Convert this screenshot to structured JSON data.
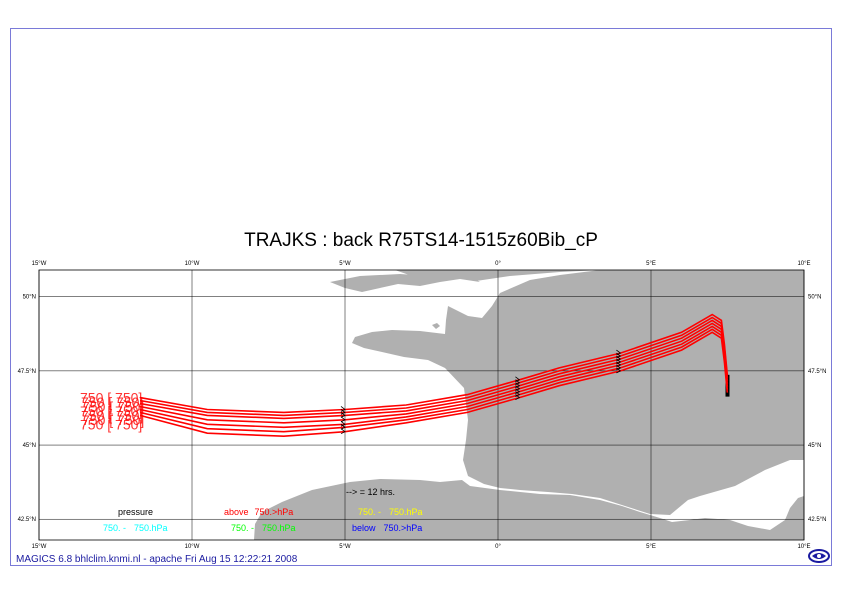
{
  "title": "TRAJKS : back R75TS14-1515z60Bib_cP",
  "footer": "MAGICS 6.8 bhlclim.knmi.nl - apache Fri Aug 15 12:22:21 2008",
  "axes": {
    "lon_labels": [
      "15°W",
      "10°W",
      "5°W",
      "0°",
      "5°E",
      "10°E"
    ],
    "lat_labels": [
      "50°N",
      "47.5°N",
      "45°N",
      "42.5°N"
    ],
    "lon_range": [
      -15,
      10
    ],
    "lat_range": [
      41.8,
      50.9
    ]
  },
  "legend": {
    "arrow_note": "--> = 12 hrs.",
    "pressure_label": "pressure",
    "entries": [
      {
        "prefix": "above",
        "text": "750.>hPa",
        "color": "#ff0000"
      },
      {
        "prefix": "750. -",
        "text": "750.hPa",
        "color": "#ffff00"
      },
      {
        "prefix": "750. -",
        "text": "750.hPa",
        "color": "#00ffff"
      },
      {
        "prefix": "750. -",
        "text": "750.hPa",
        "color": "#00ff00"
      },
      {
        "prefix": "below",
        "text": "750.>hPa",
        "color": "#0000ff"
      }
    ]
  },
  "trajectory_start_label": "750 [ 750]",
  "colors": {
    "land": "#b0b0b0",
    "sea": "#ffffff",
    "trajectory": "#ff0000",
    "grid": "#000000",
    "frame": "#7a7ad8",
    "footer": "#1a1aa0"
  },
  "trajectories": [
    {
      "points": [
        [
          -11.7,
          46.6
        ],
        [
          -9.5,
          46.2
        ],
        [
          -7,
          46.1
        ],
        [
          -5,
          46.2
        ],
        [
          -3,
          46.35
        ],
        [
          -1,
          46.7
        ],
        [
          0.7,
          47.2
        ],
        [
          2,
          47.6
        ],
        [
          4,
          48.1
        ],
        [
          6,
          48.8
        ],
        [
          7,
          49.4
        ],
        [
          7.3,
          49.2
        ],
        [
          7.4,
          48.4
        ],
        [
          7.5,
          47.3
        ]
      ]
    },
    {
      "points": [
        [
          -11.7,
          46.5
        ],
        [
          -9.5,
          46.1
        ],
        [
          -7,
          46.0
        ],
        [
          -5,
          46.1
        ],
        [
          -3,
          46.25
        ],
        [
          -1,
          46.6
        ],
        [
          0.7,
          47.1
        ],
        [
          2,
          47.5
        ],
        [
          4,
          48.0
        ],
        [
          6,
          48.7
        ],
        [
          7,
          49.3
        ],
        [
          7.3,
          49.1
        ],
        [
          7.4,
          48.3
        ],
        [
          7.5,
          47.2
        ]
      ]
    },
    {
      "points": [
        [
          -11.7,
          46.4
        ],
        [
          -9.5,
          46.0
        ],
        [
          -7,
          45.9
        ],
        [
          -5,
          46.0
        ],
        [
          -3,
          46.15
        ],
        [
          -1,
          46.5
        ],
        [
          0.7,
          47.0
        ],
        [
          2,
          47.4
        ],
        [
          4,
          47.9
        ],
        [
          6,
          48.6
        ],
        [
          7,
          49.2
        ],
        [
          7.3,
          49.0
        ],
        [
          7.4,
          48.2
        ],
        [
          7.5,
          47.1
        ]
      ]
    },
    {
      "points": [
        [
          -11.7,
          46.3
        ],
        [
          -9.5,
          45.85
        ],
        [
          -7,
          45.75
        ],
        [
          -5,
          45.85
        ],
        [
          -3,
          46.05
        ],
        [
          -1,
          46.4
        ],
        [
          0.7,
          46.9
        ],
        [
          2,
          47.3
        ],
        [
          4,
          47.8
        ],
        [
          6,
          48.5
        ],
        [
          7,
          49.1
        ],
        [
          7.3,
          48.9
        ],
        [
          7.4,
          48.1
        ],
        [
          7.5,
          47.0
        ]
      ]
    },
    {
      "points": [
        [
          -11.7,
          46.2
        ],
        [
          -9.5,
          45.7
        ],
        [
          -7,
          45.6
        ],
        [
          -5,
          45.7
        ],
        [
          -3,
          45.95
        ],
        [
          -1,
          46.3
        ],
        [
          0.7,
          46.8
        ],
        [
          2,
          47.2
        ],
        [
          4,
          47.7
        ],
        [
          6,
          48.4
        ],
        [
          7,
          49.0
        ],
        [
          7.3,
          48.8
        ],
        [
          7.4,
          48.0
        ],
        [
          7.5,
          46.9
        ]
      ]
    },
    {
      "points": [
        [
          -11.7,
          46.1
        ],
        [
          -9.5,
          45.55
        ],
        [
          -7,
          45.45
        ],
        [
          -5,
          45.6
        ],
        [
          -3,
          45.85
        ],
        [
          -1,
          46.2
        ],
        [
          0.7,
          46.7
        ],
        [
          2,
          47.1
        ],
        [
          4,
          47.6
        ],
        [
          6,
          48.3
        ],
        [
          7,
          48.9
        ],
        [
          7.3,
          48.7
        ],
        [
          7.4,
          47.9
        ],
        [
          7.5,
          46.8
        ]
      ]
    },
    {
      "points": [
        [
          -11.7,
          46.0
        ],
        [
          -9.5,
          45.4
        ],
        [
          -7,
          45.3
        ],
        [
          -5,
          45.45
        ],
        [
          -3,
          45.75
        ],
        [
          -1,
          46.1
        ],
        [
          0.7,
          46.6
        ],
        [
          2,
          47.0
        ],
        [
          4,
          47.5
        ],
        [
          6,
          48.2
        ],
        [
          7,
          48.8
        ],
        [
          7.3,
          48.6
        ],
        [
          7.4,
          47.8
        ],
        [
          7.5,
          46.7
        ]
      ]
    }
  ]
}
